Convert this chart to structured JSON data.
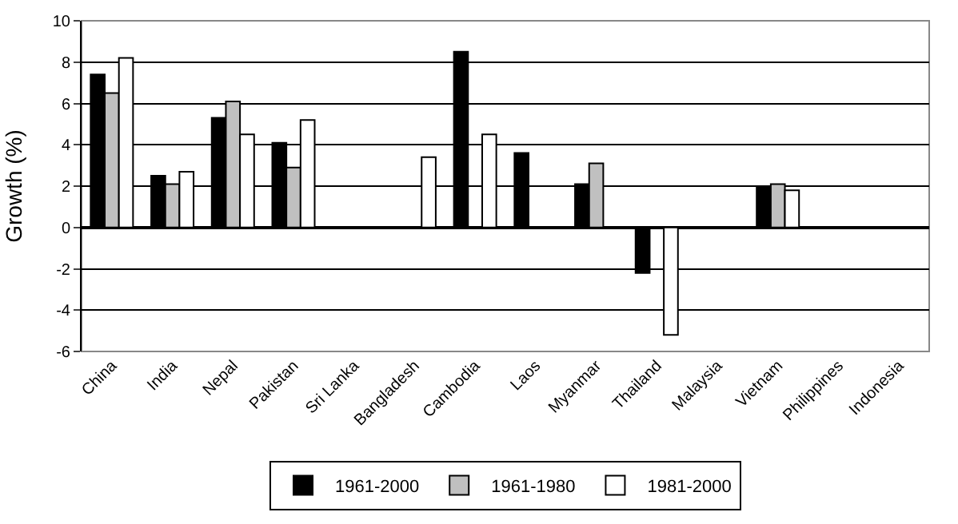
{
  "chart_data": {
    "type": "bar",
    "ylabel": "Growth (%)",
    "categories": [
      "China",
      "India",
      "Nepal",
      "Pakistan",
      "Sri Lanka",
      "Bangladesh",
      "Cambodia",
      "Laos",
      "Myanmar",
      "Thailand",
      "Malaysia",
      "Vietnam",
      "Philippines",
      "Indonesia"
    ],
    "series": [
      {
        "name": "1961-2000",
        "color": "#000000",
        "values": [
          7.4,
          2.5,
          5.3,
          4.1,
          null,
          null,
          8.5,
          3.6,
          2.1,
          -2.2,
          null,
          2.0,
          null,
          null
        ]
      },
      {
        "name": "1961-1980",
        "color": "#c0c0c0",
        "values": [
          6.5,
          2.1,
          6.1,
          2.9,
          null,
          null,
          null,
          null,
          3.1,
          null,
          null,
          2.1,
          null,
          null
        ]
      },
      {
        "name": "1981-2000",
        "color": "#ffffff",
        "values": [
          8.2,
          2.7,
          4.5,
          5.2,
          null,
          3.4,
          4.5,
          null,
          null,
          -5.2,
          null,
          1.8,
          null,
          null
        ]
      }
    ],
    "ylim": [
      -6,
      10
    ],
    "yticks": [
      -6,
      -4,
      -2,
      0,
      2,
      4,
      6,
      8,
      10
    ],
    "grid": "y",
    "legend": "bottom"
  }
}
